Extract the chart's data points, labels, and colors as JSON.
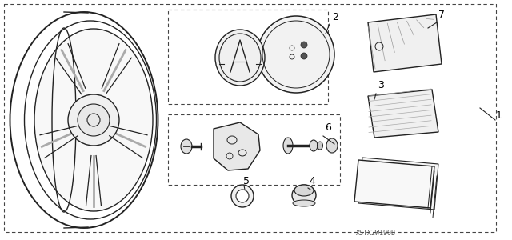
{
  "bg_color": "#ffffff",
  "line_color": "#222222",
  "dashed_color": "#444444",
  "watermark": "XSTX2W190B",
  "figsize": [
    6.4,
    3.0
  ],
  "dpi": 100
}
